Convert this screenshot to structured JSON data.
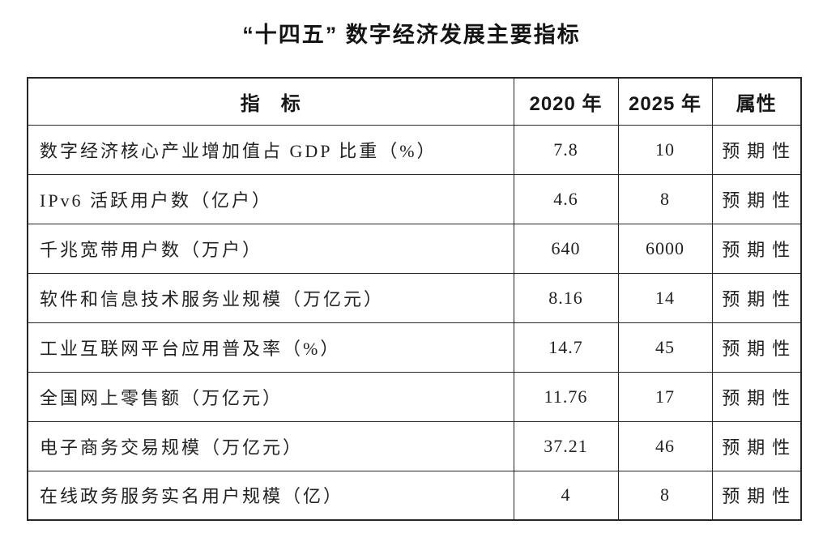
{
  "page_title": "“十四五” 数字经济发展主要指标",
  "colors": {
    "background": "#ffffff",
    "text": "#1f1f1f",
    "border": "#262626"
  },
  "table": {
    "headers": {
      "indicator": "指　标",
      "y2020": "2020 年",
      "y2025": "2025 年",
      "attribute": "属性"
    },
    "rows": [
      {
        "indicator": "数字经济核心产业增加值占 GDP 比重（%）",
        "y2020": "7.8",
        "y2025": "10",
        "attribute": "预期性"
      },
      {
        "indicator": "IPv6 活跃用户数（亿户）",
        "y2020": "4.6",
        "y2025": "8",
        "attribute": "预期性"
      },
      {
        "indicator": "千兆宽带用户数（万户）",
        "y2020": "640",
        "y2025": "6000",
        "attribute": "预期性"
      },
      {
        "indicator": "软件和信息技术服务业规模（万亿元）",
        "y2020": "8.16",
        "y2025": "14",
        "attribute": "预期性"
      },
      {
        "indicator": "工业互联网平台应用普及率（%）",
        "y2020": "14.7",
        "y2025": "45",
        "attribute": "预期性"
      },
      {
        "indicator": "全国网上零售额（万亿元）",
        "y2020": "11.76",
        "y2025": "17",
        "attribute": "预期性"
      },
      {
        "indicator": "电子商务交易规模（万亿元）",
        "y2020": "37.21",
        "y2025": "46",
        "attribute": "预期性"
      },
      {
        "indicator": "在线政务服务实名用户规模（亿）",
        "y2020": "4",
        "y2025": "8",
        "attribute": "预期性"
      }
    ]
  },
  "chart_data": {
    "type": "table",
    "title": "“十四五” 数字经济发展主要指标",
    "columns": [
      "指标",
      "2020 年",
      "2025 年",
      "属性"
    ],
    "rows": [
      [
        "数字经济核心产业增加值占 GDP 比重（%）",
        7.8,
        10,
        "预期性"
      ],
      [
        "IPv6 活跃用户数（亿户）",
        4.6,
        8,
        "预期性"
      ],
      [
        "千兆宽带用户数（万户）",
        640,
        6000,
        "预期性"
      ],
      [
        "软件和信息技术服务业规模（万亿元）",
        8.16,
        14,
        "预期性"
      ],
      [
        "工业互联网平台应用普及率（%）",
        14.7,
        45,
        "预期性"
      ],
      [
        "全国网上零售额（万亿元）",
        11.76,
        17,
        "预期性"
      ],
      [
        "电子商务交易规模（万亿元）",
        37.21,
        46,
        "预期性"
      ],
      [
        "在线政务服务实名用户规模（亿）",
        4,
        8,
        "预期性"
      ]
    ]
  }
}
